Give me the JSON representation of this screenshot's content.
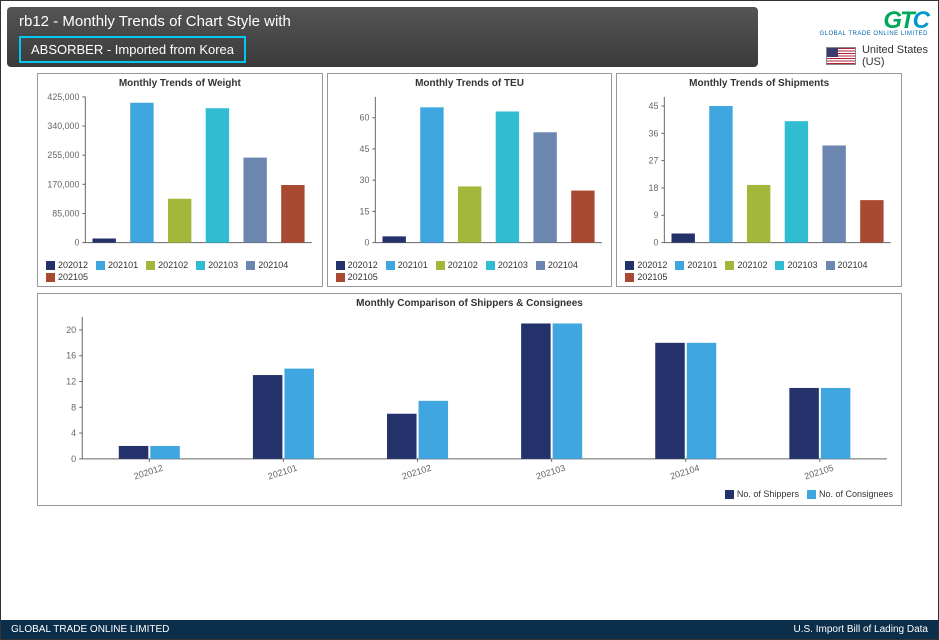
{
  "header": {
    "title": "rb12 - Monthly Trends of Chart Style with",
    "subtitle": "ABSORBER - Imported from Korea"
  },
  "brand": {
    "logo_text_1": "G",
    "logo_text_2": "T",
    "logo_text_3": "C",
    "tagline": "GLOBAL TRADE ONLINE LIMITED",
    "country_name": "United States",
    "country_code": "(US)"
  },
  "series_colors": [
    "#24326b",
    "#3fa6e0",
    "#a3b83b",
    "#30bcd1",
    "#6b87b0",
    "#a84a32"
  ],
  "categories": [
    "202012",
    "202101",
    "202102",
    "202103",
    "202104",
    "202105"
  ],
  "charts": [
    {
      "title": "Monthly Trends of Weight",
      "type": "bar",
      "values": [
        12000,
        408000,
        128000,
        392000,
        248000,
        168000
      ],
      "ylim": [
        0,
        425000
      ],
      "yticks": [
        0,
        85000,
        170000,
        255000,
        340000,
        425000
      ],
      "ytick_labels": [
        "0",
        "85,000",
        "170,000",
        "255,000",
        "340,000",
        "425,000"
      ]
    },
    {
      "title": "Monthly Trends of TEU",
      "type": "bar",
      "values": [
        3,
        65,
        27,
        63,
        53,
        25
      ],
      "ylim": [
        0,
        70
      ],
      "yticks": [
        0,
        15,
        30,
        45,
        60
      ],
      "ytick_labels": [
        "0",
        "15",
        "30",
        "45",
        "60"
      ]
    },
    {
      "title": "Monthly Trends of Shipments",
      "type": "bar",
      "values": [
        3,
        45,
        19,
        40,
        32,
        14
      ],
      "ylim": [
        0,
        48
      ],
      "yticks": [
        0,
        9,
        18,
        27,
        36,
        45
      ],
      "ytick_labels": [
        "0",
        "9",
        "18",
        "27",
        "36",
        "45"
      ]
    }
  ],
  "comparison": {
    "title": "Monthly Comparison of Shippers & Consignees",
    "type": "grouped_bar",
    "categories": [
      "202012",
      "202101",
      "202102",
      "202103",
      "202104",
      "202105"
    ],
    "series": [
      {
        "name": "No. of Shippers",
        "color": "#24326b",
        "values": [
          2,
          13,
          7,
          21,
          18,
          11
        ]
      },
      {
        "name": "No. of Consignees",
        "color": "#3fa6e0",
        "values": [
          2,
          14,
          9,
          21,
          18,
          11
        ]
      }
    ],
    "ylim": [
      0,
      22
    ],
    "yticks": [
      0,
      4,
      8,
      12,
      16,
      20
    ],
    "ytick_labels": [
      "0",
      "4",
      "8",
      "12",
      "16",
      "20"
    ]
  },
  "footer": {
    "left": "GLOBAL TRADE ONLINE LIMITED",
    "right": "U.S. Import Bill of Lading Data"
  },
  "style": {
    "background_color": "#ffffff",
    "grid_color": "#666666",
    "text_color": "#333333",
    "header_bg": "#3a3a3a",
    "highlight_border": "#00c8f0",
    "footer_bg": "#0b2e4a",
    "label_fontsize": 9,
    "title_fontsize": 10
  }
}
